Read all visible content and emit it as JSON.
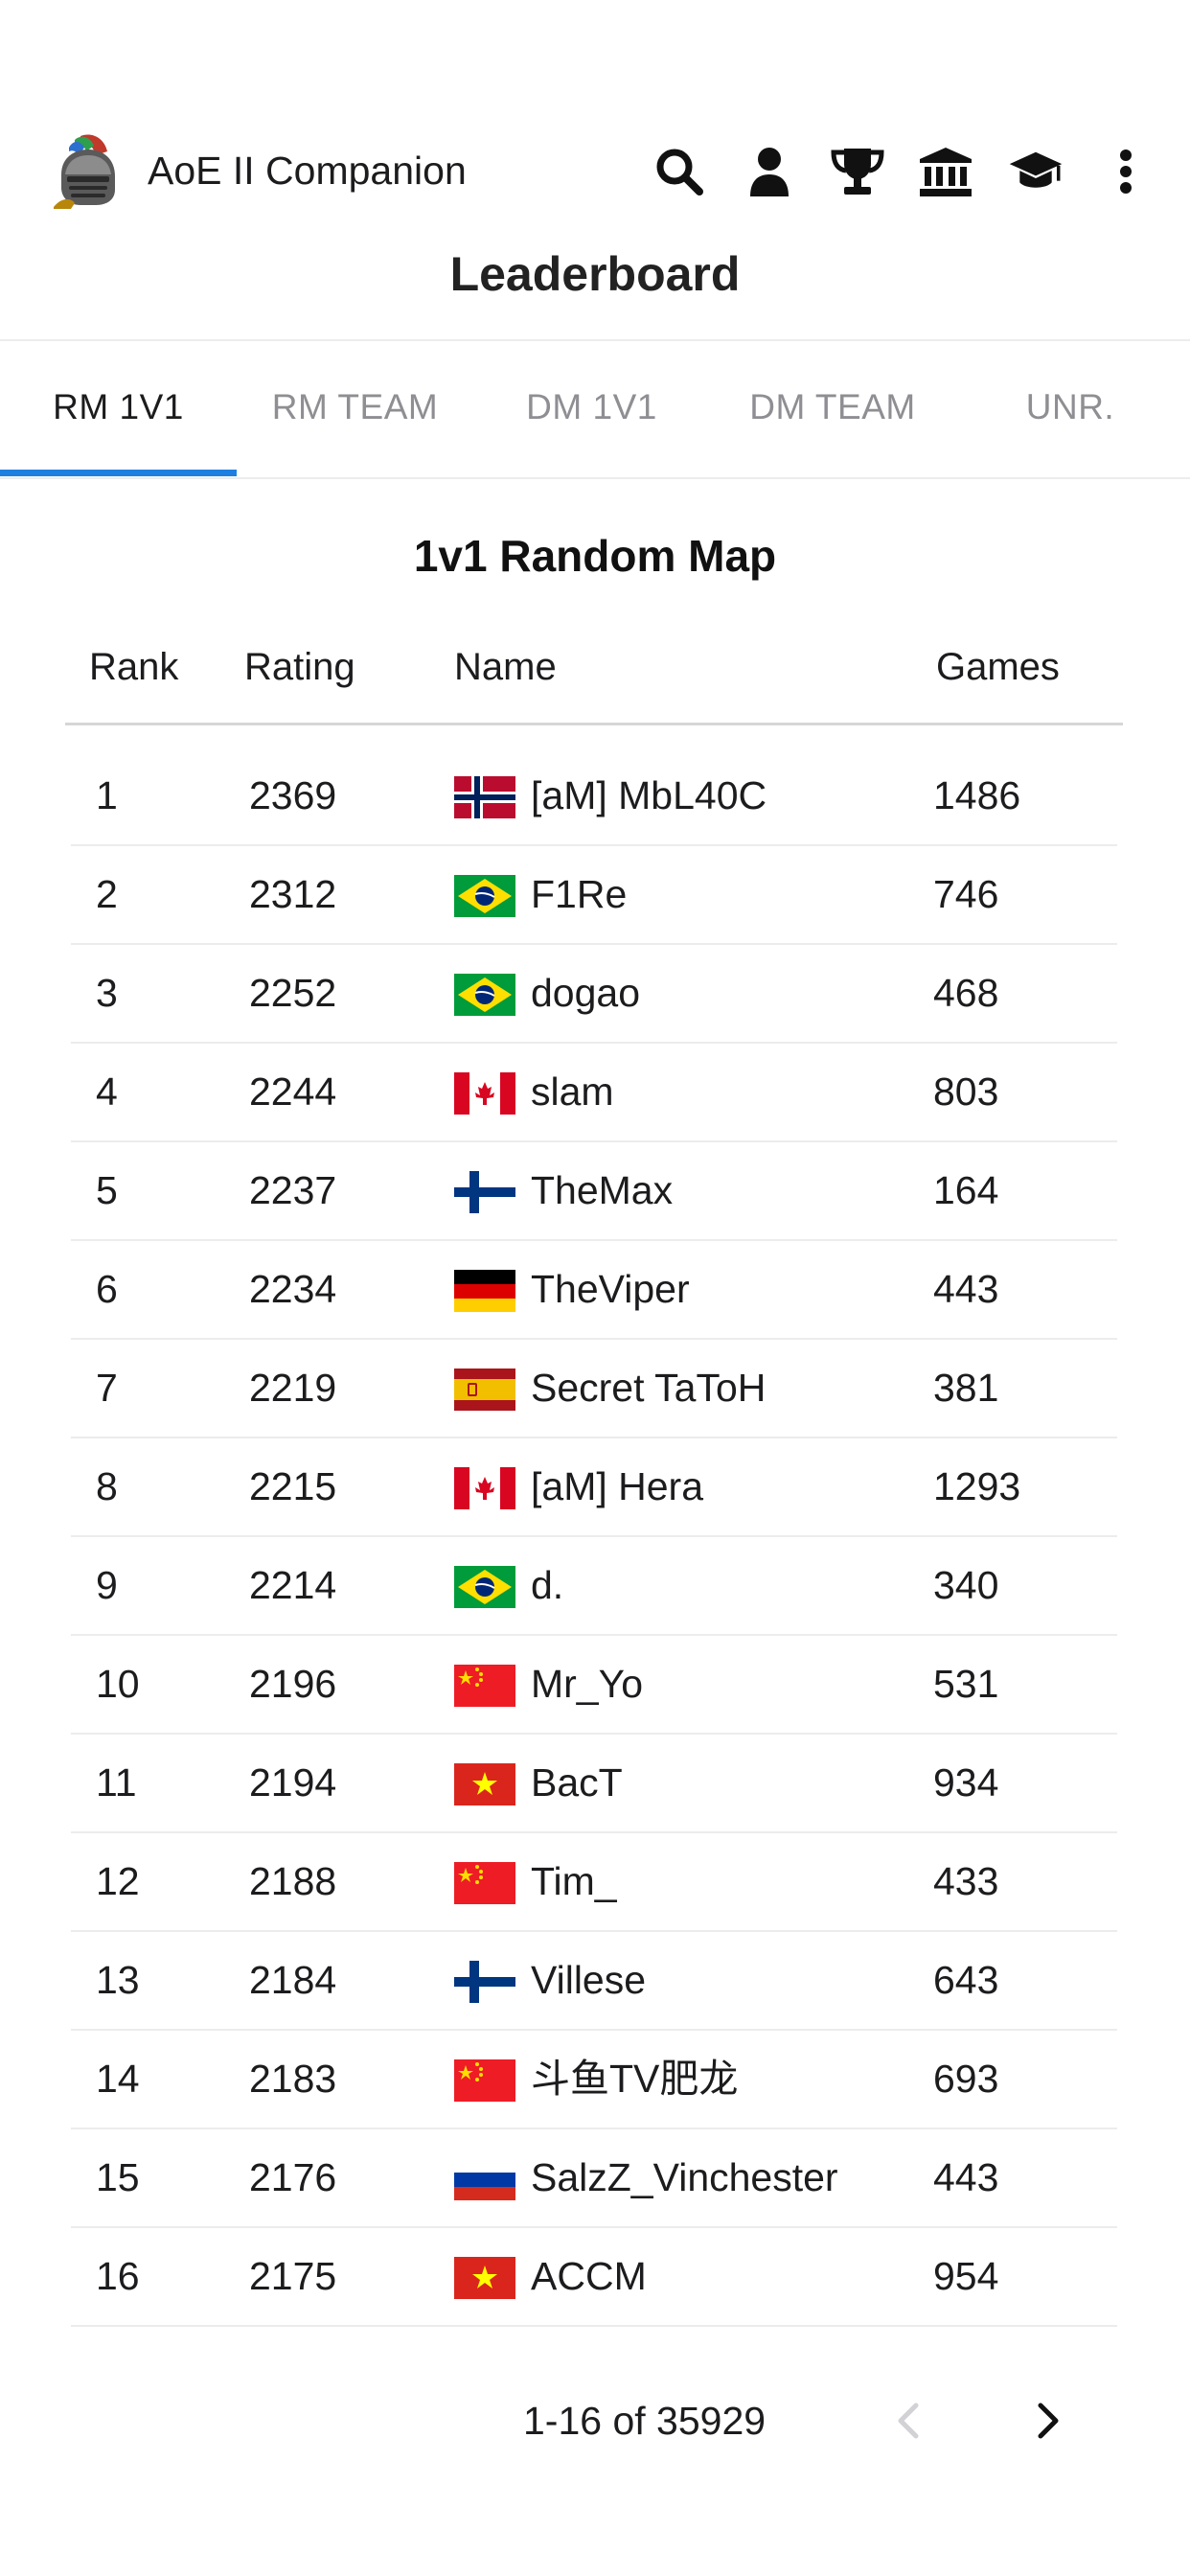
{
  "app": {
    "title": "AoE II Companion",
    "logo_icon": "helmet-icon"
  },
  "header": {
    "page_title": "Leaderboard",
    "icons": [
      "search-icon",
      "profile-icon",
      "trophy-icon",
      "civilization-icon",
      "guide-icon",
      "more-icon"
    ]
  },
  "tabs": [
    {
      "label": "RM 1V1",
      "active": true
    },
    {
      "label": "RM TEAM",
      "active": false
    },
    {
      "label": "DM 1V1",
      "active": false
    },
    {
      "label": "DM TEAM",
      "active": false
    },
    {
      "label": "UNR.",
      "active": false
    }
  ],
  "table": {
    "title": "1v1 Random Map",
    "columns": {
      "rank": "Rank",
      "rating": "Rating",
      "name": "Name",
      "games": "Games"
    },
    "rows": [
      {
        "rank": "1",
        "rating": "2369",
        "flag": "NO",
        "name": "[aM] MbL40C",
        "games": "1486"
      },
      {
        "rank": "2",
        "rating": "2312",
        "flag": "BR",
        "name": "F1Re",
        "games": "746"
      },
      {
        "rank": "3",
        "rating": "2252",
        "flag": "BR",
        "name": "dogao",
        "games": "468"
      },
      {
        "rank": "4",
        "rating": "2244",
        "flag": "CA",
        "name": "slam",
        "games": "803"
      },
      {
        "rank": "5",
        "rating": "2237",
        "flag": "FI",
        "name": "TheMax",
        "games": "164"
      },
      {
        "rank": "6",
        "rating": "2234",
        "flag": "DE",
        "name": "TheViper",
        "games": "443"
      },
      {
        "rank": "7",
        "rating": "2219",
        "flag": "ES",
        "name": "Secret TaToH",
        "games": "381"
      },
      {
        "rank": "8",
        "rating": "2215",
        "flag": "CA",
        "name": "[aM] Hera",
        "games": "1293"
      },
      {
        "rank": "9",
        "rating": "2214",
        "flag": "BR",
        "name": "d.",
        "games": "340"
      },
      {
        "rank": "10",
        "rating": "2196",
        "flag": "CN",
        "name": "Mr_Yo",
        "games": "531"
      },
      {
        "rank": "11",
        "rating": "2194",
        "flag": "VN",
        "name": "BacT",
        "games": "934"
      },
      {
        "rank": "12",
        "rating": "2188",
        "flag": "CN",
        "name": "Tim_",
        "games": "433"
      },
      {
        "rank": "13",
        "rating": "2184",
        "flag": "FI",
        "name": "Villese",
        "games": "643"
      },
      {
        "rank": "14",
        "rating": "2183",
        "flag": "CN",
        "name": "斗鱼TV肥龙",
        "games": "693"
      },
      {
        "rank": "15",
        "rating": "2176",
        "flag": "RU",
        "name": "SalzZ_Vinchester",
        "games": "443"
      },
      {
        "rank": "16",
        "rating": "2175",
        "flag": "VN",
        "name": "ACCM",
        "games": "954"
      }
    ]
  },
  "pagination": {
    "range_text": "1-16 of 35929",
    "prev_enabled": false,
    "next_enabled": true
  },
  "colors": {
    "accent": "#1e7fe0",
    "text": "#1c1c1e",
    "muted": "#8e8e93",
    "divider": "#ececec"
  }
}
